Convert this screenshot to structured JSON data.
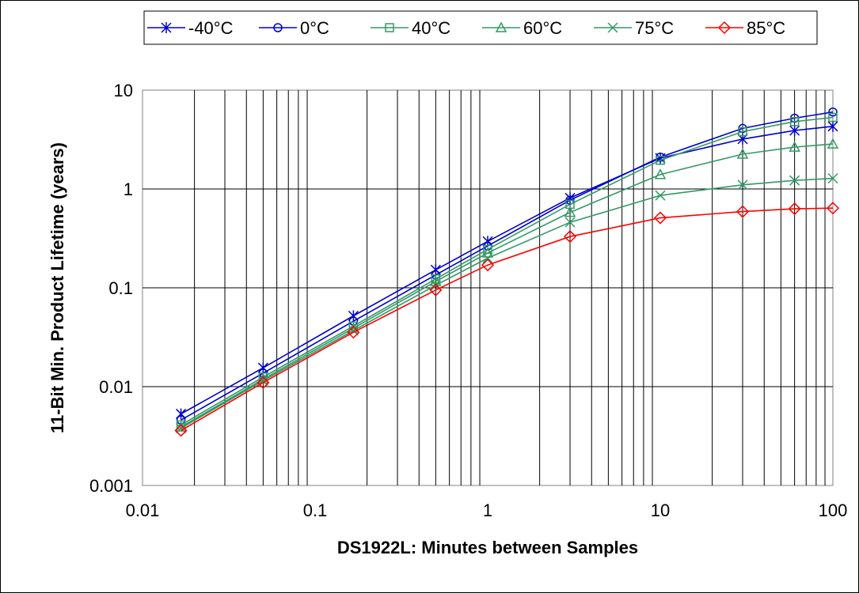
{
  "chart_data": {
    "type": "line",
    "xlabel": "DS1922L: Minutes between Samples",
    "ylabel": "11-Bit Min. Product Lifetime (years)",
    "x_scale": "log",
    "y_scale": "log",
    "xlim": [
      0.01,
      100
    ],
    "ylim": [
      0.001,
      10
    ],
    "x_ticks": [
      "0.01",
      "0.1",
      "1",
      "10",
      "100"
    ],
    "y_ticks": [
      "0.001",
      "0.01",
      "0.1",
      "1",
      "10"
    ],
    "grid": "vertical minor and major, horizontal major",
    "legend_position": "top",
    "x": [
      0.0167,
      0.05,
      0.1667,
      0.5,
      1,
      3,
      10,
      30,
      60,
      100
    ],
    "series": [
      {
        "name": "-40°C",
        "color": "#0000cc",
        "marker": "star",
        "values": [
          0.0053,
          0.0155,
          0.052,
          0.152,
          0.295,
          0.81,
          2.05,
          3.2,
          3.9,
          4.3
        ]
      },
      {
        "name": "0°C",
        "color": "#0000cc",
        "marker": "circle",
        "values": [
          0.0046,
          0.0137,
          0.046,
          0.135,
          0.265,
          0.77,
          2.1,
          4.1,
          5.2,
          6.0
        ]
      },
      {
        "name": "40°C",
        "color": "#339966",
        "marker": "square",
        "values": [
          0.0041,
          0.0125,
          0.041,
          0.123,
          0.245,
          0.7,
          1.95,
          3.8,
          4.8,
          5.3
        ]
      },
      {
        "name": "60°C",
        "color": "#339966",
        "marker": "triangle",
        "values": [
          0.0039,
          0.0119,
          0.039,
          0.116,
          0.225,
          0.58,
          1.4,
          2.25,
          2.65,
          2.85
        ]
      },
      {
        "name": "75°C",
        "color": "#339966",
        "marker": "x",
        "values": [
          0.0038,
          0.0115,
          0.037,
          0.106,
          0.2,
          0.46,
          0.86,
          1.1,
          1.22,
          1.28
        ]
      },
      {
        "name": "85°C",
        "color": "#ff0000",
        "marker": "diamond",
        "values": [
          0.0036,
          0.011,
          0.0355,
          0.095,
          0.17,
          0.33,
          0.51,
          0.59,
          0.63,
          0.64
        ]
      }
    ]
  }
}
